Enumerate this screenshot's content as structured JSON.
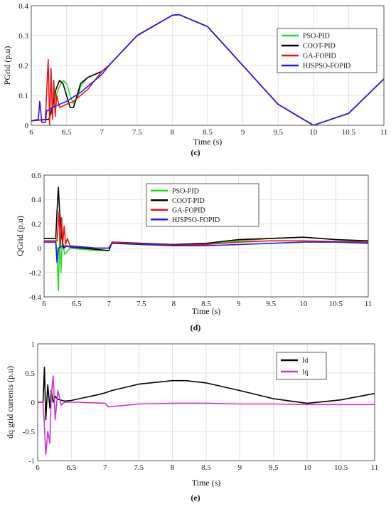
{
  "chart_data": [
    {
      "type": "line",
      "caption": "(c)",
      "xlabel": "Time (s)",
      "ylabel": "PGrid (p.u)",
      "xlim": [
        6,
        11
      ],
      "ylim": [
        0,
        0.4
      ],
      "xticks": [
        "6",
        "6.5",
        "7",
        "7.5",
        "8",
        "8.5",
        "9",
        "9.5",
        "10",
        "10.5",
        "11"
      ],
      "yticks": [
        "0",
        "0.1",
        "0.2",
        "0.3",
        "0.4"
      ],
      "grid": true,
      "legend": "top-right",
      "series": [
        {
          "name": "PSO-PID",
          "color": "#22dd22",
          "x": [
            6,
            6.25,
            6.3,
            6.35,
            6.4,
            6.45,
            6.5,
            6.55,
            6.6,
            6.65,
            6.7,
            6.8,
            6.9,
            7,
            7.1,
            7.5,
            8,
            8.1,
            8.5,
            9,
            9.5,
            10,
            10.5,
            11
          ],
          "y": [
            0.015,
            0.02,
            0.05,
            0.1,
            0.13,
            0.15,
            0.14,
            0.1,
            0.07,
            0.09,
            0.13,
            0.16,
            0.17,
            0.18,
            0.2,
            0.3,
            0.368,
            0.37,
            0.33,
            0.2,
            0.07,
            0.0,
            0.04,
            0.155
          ]
        },
        {
          "name": "COOT-PID",
          "color": "#000000",
          "x": [
            6,
            6.25,
            6.3,
            6.35,
            6.4,
            6.45,
            6.5,
            6.55,
            6.6,
            6.65,
            6.7,
            6.8,
            6.9,
            7,
            7.1,
            7.5,
            8,
            8.1,
            8.5,
            9,
            9.5,
            10,
            10.5,
            11
          ],
          "y": [
            0.015,
            0.02,
            0.06,
            0.12,
            0.15,
            0.14,
            0.1,
            0.06,
            0.06,
            0.1,
            0.14,
            0.16,
            0.17,
            0.18,
            0.2,
            0.3,
            0.368,
            0.37,
            0.33,
            0.2,
            0.07,
            0.0,
            0.04,
            0.155
          ]
        },
        {
          "name": "GA-FOPID",
          "color": "#ee1111",
          "x": [
            6,
            6.2,
            6.24,
            6.26,
            6.28,
            6.3,
            6.32,
            6.34,
            6.36,
            6.4,
            6.5,
            6.6,
            6.7,
            6.8,
            6.9,
            7,
            7.1,
            7.5,
            8,
            8.1,
            8.5,
            9,
            9.5,
            10,
            10.5,
            11
          ],
          "y": [
            0.015,
            0.02,
            0.22,
            0.0,
            0.19,
            0.02,
            0.15,
            0.03,
            0.1,
            0.06,
            0.07,
            0.08,
            0.1,
            0.12,
            0.15,
            0.18,
            0.2,
            0.3,
            0.368,
            0.37,
            0.33,
            0.2,
            0.07,
            0.0,
            0.04,
            0.155
          ]
        },
        {
          "name": "HJSPSO-FOPID",
          "color": "#1a1aee",
          "x": [
            6,
            6.1,
            6.12,
            6.15,
            6.2,
            6.22,
            6.25,
            6.3,
            6.5,
            6.7,
            6.9,
            7,
            7.1,
            7.5,
            8,
            8.1,
            8.5,
            9,
            9.5,
            10,
            10.5,
            11
          ],
          "y": [
            0.015,
            0.02,
            0.08,
            0.01,
            0.01,
            0.05,
            0.05,
            0.06,
            0.08,
            0.11,
            0.15,
            0.17,
            0.2,
            0.3,
            0.368,
            0.37,
            0.33,
            0.2,
            0.07,
            0.0,
            0.04,
            0.155
          ]
        }
      ]
    },
    {
      "type": "line",
      "caption": "(d)",
      "xlabel": "Time (s)",
      "ylabel": "QGrid (p.u)",
      "xlim": [
        6,
        11
      ],
      "ylim": [
        -0.4,
        0.6
      ],
      "xticks": [
        "6",
        "6.5",
        "7",
        "7.5",
        "8",
        "8.5",
        "9",
        "9.5",
        "10",
        "10.5",
        "11"
      ],
      "yticks": [
        "-0.4",
        "-0.2",
        "0",
        "0.2",
        "0.4",
        "0.6"
      ],
      "grid": true,
      "legend": "top-center",
      "series": [
        {
          "name": "PSO-PID",
          "color": "#22dd22",
          "x": [
            6,
            6.18,
            6.2,
            6.22,
            6.24,
            6.26,
            6.28,
            6.32,
            6.4,
            6.6,
            6.8,
            7,
            7.05,
            7.5,
            8,
            8.5,
            9,
            9.5,
            10,
            10.5,
            11
          ],
          "y": [
            0.08,
            0.08,
            -0.05,
            -0.35,
            0.1,
            -0.2,
            0.05,
            -0.05,
            0.0,
            -0.01,
            -0.02,
            -0.02,
            0.05,
            0.04,
            0.03,
            0.04,
            0.06,
            0.08,
            0.09,
            0.07,
            0.05
          ]
        },
        {
          "name": "COOT-PID",
          "color": "#000000",
          "x": [
            6,
            6.18,
            6.2,
            6.22,
            6.24,
            6.27,
            6.3,
            6.35,
            6.4,
            6.6,
            6.8,
            7,
            7.05,
            7.5,
            8,
            8.5,
            9,
            9.5,
            10,
            10.5,
            11
          ],
          "y": [
            0.08,
            0.08,
            0.3,
            0.5,
            0.3,
            0.1,
            0.0,
            0.02,
            0.01,
            0.0,
            -0.01,
            -0.02,
            0.05,
            0.04,
            0.03,
            0.04,
            0.07,
            0.08,
            0.09,
            0.07,
            0.06
          ]
        },
        {
          "name": "GA-FOPID",
          "color": "#ee1111",
          "x": [
            6,
            6.2,
            6.23,
            6.25,
            6.27,
            6.29,
            6.31,
            6.33,
            6.36,
            6.4,
            6.6,
            6.8,
            7,
            7.05,
            7.5,
            8,
            8.5,
            9,
            9.5,
            10,
            10.5,
            11
          ],
          "y": [
            0.06,
            0.06,
            0.3,
            0.0,
            0.25,
            0.05,
            0.18,
            0.03,
            0.08,
            0.02,
            0.01,
            0.0,
            0.0,
            0.05,
            0.035,
            0.025,
            0.03,
            0.05,
            0.06,
            0.06,
            0.055,
            0.05
          ]
        },
        {
          "name": "HJSPSO-FOPID",
          "color": "#1a1aee",
          "x": [
            6,
            6.18,
            6.2,
            6.22,
            6.25,
            6.3,
            6.4,
            6.6,
            6.8,
            7,
            7.05,
            7.5,
            8,
            8.5,
            9,
            9.5,
            10,
            10.5,
            11
          ],
          "y": [
            0.05,
            0.05,
            -0.12,
            0.0,
            0.01,
            0.02,
            0.01,
            0.01,
            0.0,
            0.0,
            0.04,
            0.03,
            0.02,
            0.02,
            0.03,
            0.04,
            0.05,
            0.05,
            0.04
          ]
        }
      ]
    },
    {
      "type": "line",
      "caption": "(e)",
      "xlabel": "Time (s)",
      "ylabel": "dq grid currents (p.u)",
      "xlim": [
        6,
        11
      ],
      "ylim": [
        -1,
        1
      ],
      "xticks": [
        "6",
        "6.5",
        "7",
        "7.5",
        "8",
        "8.5",
        "9",
        "9.5",
        "10",
        "10.5",
        "11"
      ],
      "yticks": [
        "-1",
        "-0.5",
        "0",
        "0.5",
        "1"
      ],
      "grid": true,
      "legend": "top-right",
      "series": [
        {
          "name": "Id",
          "color": "#000000",
          "x": [
            6,
            6.08,
            6.1,
            6.12,
            6.15,
            6.18,
            6.2,
            6.23,
            6.26,
            6.3,
            6.4,
            6.5,
            6.7,
            6.9,
            7,
            7.1,
            7.5,
            8,
            8.2,
            8.5,
            9,
            9.5,
            10,
            10.5,
            11
          ],
          "y": [
            0.0,
            0.0,
            0.6,
            -0.3,
            0.3,
            -0.1,
            0.2,
            0.0,
            0.1,
            0.05,
            0.02,
            0.03,
            0.08,
            0.13,
            0.16,
            0.2,
            0.31,
            0.37,
            0.37,
            0.33,
            0.2,
            0.06,
            -0.02,
            0.04,
            0.15
          ]
        },
        {
          "name": "Iq",
          "color": "#cc33cc",
          "x": [
            6,
            6.08,
            6.1,
            6.12,
            6.15,
            6.18,
            6.2,
            6.23,
            6.26,
            6.3,
            6.35,
            6.4,
            6.6,
            7,
            7.05,
            7.5,
            8,
            8.5,
            9,
            9.5,
            10,
            10.5,
            11
          ],
          "y": [
            0.0,
            0.0,
            -0.4,
            -0.9,
            -0.5,
            -0.7,
            0.1,
            0.45,
            -0.3,
            0.2,
            -0.05,
            0.0,
            0.0,
            -0.02,
            -0.08,
            -0.03,
            -0.02,
            -0.02,
            -0.03,
            -0.03,
            -0.04,
            -0.04,
            -0.04
          ]
        }
      ]
    }
  ]
}
